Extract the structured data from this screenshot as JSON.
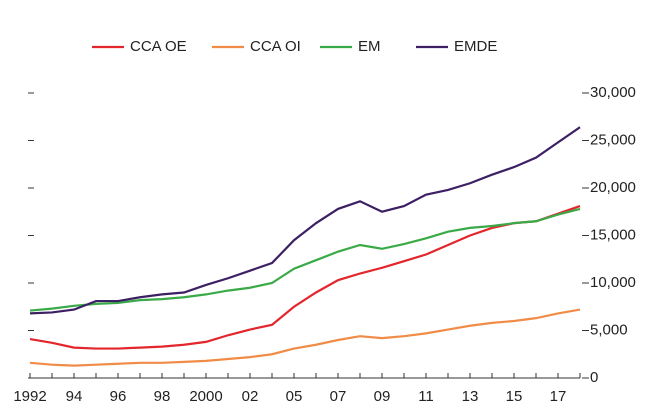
{
  "chart_data": {
    "type": "line",
    "categories": [
      "1992",
      null,
      "94",
      null,
      "96",
      null,
      "98",
      null,
      "2000",
      null,
      "02",
      null,
      "05",
      null,
      "07",
      null,
      "09",
      null,
      "11",
      null,
      "13",
      null,
      "15",
      null,
      "17",
      null
    ],
    "series": [
      {
        "name": "CCA OE",
        "color": "#e3262c",
        "values": [
          4100,
          3700,
          3200,
          3100,
          3100,
          3200,
          3300,
          3500,
          3800,
          4500,
          5100,
          5600,
          7500,
          9000,
          10300,
          11000,
          11600,
          12300,
          13000,
          14000,
          15000,
          15800,
          16300,
          16500,
          17300,
          18100
        ]
      },
      {
        "name": "CCA OI",
        "color": "#f08c47",
        "values": [
          1600,
          1400,
          1300,
          1400,
          1500,
          1600,
          1600,
          1700,
          1800,
          2000,
          2200,
          2500,
          3100,
          3500,
          4000,
          4400,
          4200,
          4400,
          4700,
          5100,
          5500,
          5800,
          6000,
          6300,
          6800,
          7200
        ]
      },
      {
        "name": "EM",
        "color": "#3aaa48",
        "values": [
          7100,
          7300,
          7600,
          7800,
          7900,
          8200,
          8300,
          8500,
          8800,
          9200,
          9500,
          10000,
          11500,
          12400,
          13300,
          14000,
          13600,
          14100,
          14700,
          15400,
          15800,
          16000,
          16300,
          16500,
          17200,
          17800
        ]
      },
      {
        "name": "EMDE",
        "color": "#3d2064",
        "values": [
          6800,
          6900,
          7200,
          8100,
          8100,
          8500,
          8800,
          9000,
          9800,
          10500,
          11300,
          12100,
          14500,
          16300,
          17800,
          18600,
          17500,
          18100,
          19300,
          19800,
          20500,
          21400,
          22200,
          23200,
          24800,
          26400
        ]
      }
    ],
    "ylim": [
      0,
      30000
    ],
    "yticks": [
      0,
      {
        "value": 5000,
        "label": "5,000"
      },
      {
        "value": 10000,
        "label": "10,000"
      },
      {
        "value": 15000,
        "label": "15,000"
      },
      {
        "value": 20000,
        "label": "20,000"
      },
      {
        "value": 25000,
        "label": "25,000"
      },
      {
        "value": 30000,
        "label": "30,000"
      }
    ]
  }
}
